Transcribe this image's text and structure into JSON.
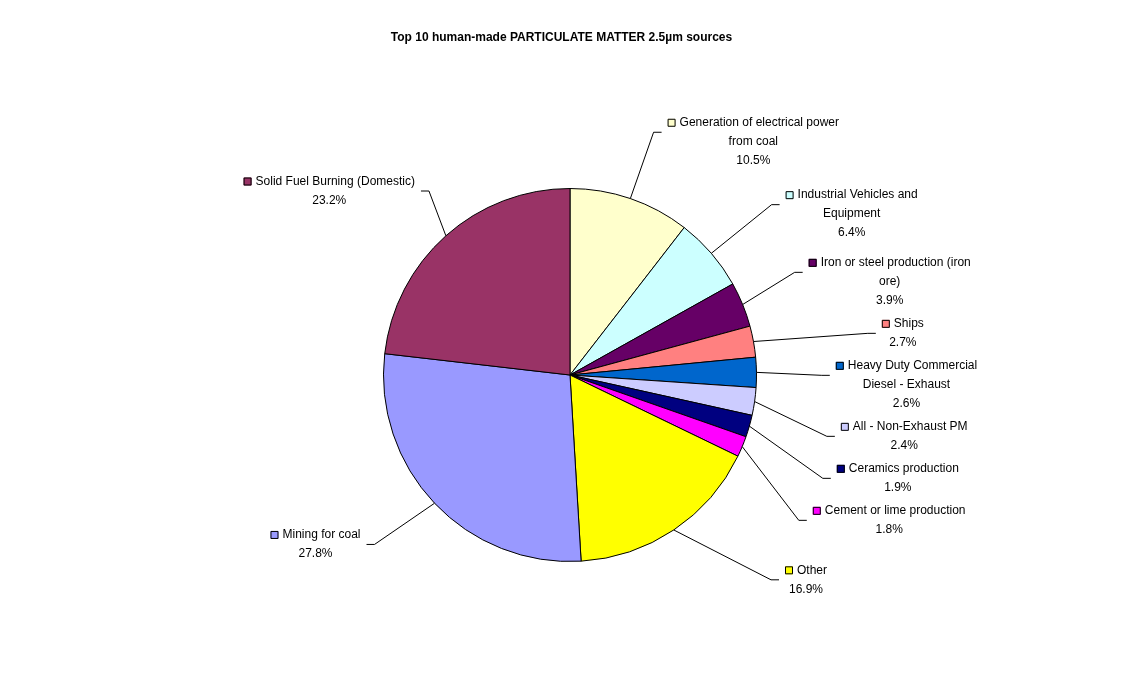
{
  "chart_data": {
    "type": "pie",
    "title": "Top 10 human-made PARTICULATE MATTER 2.5µm sources",
    "categories": [
      "Generation of electrical power from coal",
      "Industrial Vehicles and Equipment",
      "Iron or steel production (iron ore)",
      "Ships",
      "Heavy Duty Commercial Diesel - Exhaust",
      "All - Non-Exhaust PM",
      "Ceramics production",
      "Cement or lime production",
      "Other",
      "Mining for coal",
      "Solid Fuel Burning (Domestic)"
    ],
    "values": [
      10.5,
      6.4,
      3.9,
      2.7,
      2.6,
      2.4,
      1.9,
      1.8,
      16.9,
      27.8,
      23.2
    ],
    "value_labels": [
      "10.5%",
      "6.4%",
      "3.9%",
      "2.7%",
      "2.6%",
      "2.4%",
      "1.9%",
      "1.8%",
      "16.9%",
      "27.8%",
      "23.2%"
    ],
    "colors": [
      "#ffffcc",
      "#ccffff",
      "#660066",
      "#ff8080",
      "#0066cc",
      "#ccccff",
      "#000080",
      "#ff00ff",
      "#ffff00",
      "#9999ff",
      "#993366"
    ],
    "legend": "right"
  }
}
